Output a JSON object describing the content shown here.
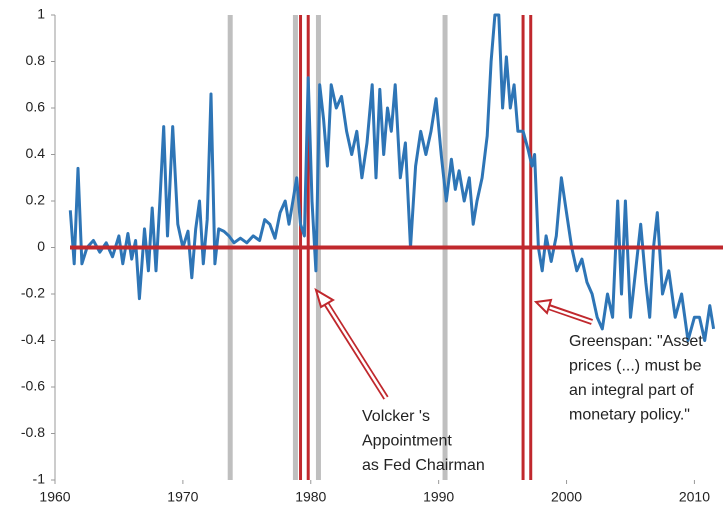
{
  "chart_data": {
    "type": "line",
    "xlim": [
      1960,
      2012
    ],
    "xticks": [
      1960,
      1970,
      1980,
      1990,
      2000,
      2010
    ],
    "ylim": [
      -1,
      1
    ],
    "yticks": [
      -1,
      -0.8,
      -0.6,
      -0.4,
      -0.2,
      0,
      0.2,
      0.4,
      0.6,
      0.8,
      1
    ],
    "color": "#2e75b6",
    "zero_line_color": "#c0282d",
    "gray_lines": [
      1973.7,
      1978.8,
      1980.6,
      1990.5
    ],
    "gray_color": "#bfbfbf",
    "red_lines": [
      1979.2,
      1979.8,
      1996.6,
      1997.2
    ],
    "red_color": "#c0282d",
    "x": [
      1961.2,
      1961.5,
      1961.8,
      1962.1,
      1962.5,
      1963,
      1963.5,
      1964,
      1964.5,
      1965,
      1965.3,
      1965.7,
      1966,
      1966.3,
      1966.6,
      1967,
      1967.3,
      1967.6,
      1967.9,
      1968.2,
      1968.5,
      1968.8,
      1969.2,
      1969.6,
      1970,
      1970.4,
      1970.7,
      1971,
      1971.3,
      1971.6,
      1971.9,
      1972.2,
      1972.5,
      1972.8,
      1973.2,
      1973.6,
      1974,
      1974.5,
      1975,
      1975.5,
      1976,
      1976.4,
      1976.8,
      1977.2,
      1977.6,
      1978,
      1978.3,
      1978.6,
      1978.9,
      1979.2,
      1979.5,
      1979.8,
      1980.1,
      1980.4,
      1980.7,
      1981,
      1981.3,
      1981.6,
      1982,
      1982.4,
      1982.8,
      1983.2,
      1983.6,
      1984,
      1984.4,
      1984.8,
      1985.1,
      1985.4,
      1985.7,
      1986,
      1986.3,
      1986.6,
      1987,
      1987.4,
      1987.8,
      1988.2,
      1988.6,
      1989,
      1989.4,
      1989.8,
      1990.2,
      1990.6,
      1991,
      1991.3,
      1991.6,
      1992,
      1992.4,
      1992.7,
      1993,
      1993.4,
      1993.8,
      1994.1,
      1994.4,
      1994.7,
      1995,
      1995.3,
      1995.6,
      1995.9,
      1996.2,
      1996.6,
      1997,
      1997.3,
      1997.5,
      1997.8,
      1998.1,
      1998.4,
      1998.8,
      1999.2,
      1999.6,
      2000,
      2000.4,
      2000.8,
      2001.2,
      2001.6,
      2002,
      2002.4,
      2002.8,
      2003.2,
      2003.6,
      2004,
      2004.3,
      2004.6,
      2005,
      2005.4,
      2005.8,
      2006.2,
      2006.5,
      2006.8,
      2007.1,
      2007.5,
      2008,
      2008.5,
      2009,
      2009.5,
      2010,
      2010.4,
      2010.8,
      2011.2,
      2011.5
    ],
    "values": [
      0.16,
      -0.07,
      0.34,
      -0.07,
      0,
      0.03,
      -0.02,
      0.02,
      -0.04,
      0.05,
      -0.07,
      0.06,
      -0.05,
      0.03,
      -0.22,
      0.08,
      -0.1,
      0.17,
      -0.1,
      0.2,
      0.52,
      0.05,
      0.52,
      0.1,
      0,
      0.07,
      -0.13,
      0.08,
      0.2,
      -0.07,
      0.12,
      0.66,
      -0.07,
      0.08,
      0.07,
      0.05,
      0.02,
      0.04,
      0.02,
      0.05,
      0.03,
      0.12,
      0.1,
      0.04,
      0.15,
      0.2,
      0.1,
      0.2,
      0.3,
      0.1,
      0.05,
      0.73,
      0.2,
      -0.1,
      0.7,
      0.55,
      0.35,
      0.7,
      0.6,
      0.65,
      0.5,
      0.4,
      0.5,
      0.3,
      0.45,
      0.7,
      0.3,
      0.68,
      0.4,
      0.6,
      0.5,
      0.7,
      0.3,
      0.45,
      0,
      0.35,
      0.5,
      0.4,
      0.5,
      0.64,
      0.4,
      0.2,
      0.38,
      0.25,
      0.33,
      0.2,
      0.3,
      0.1,
      0.2,
      0.3,
      0.48,
      0.8,
      1,
      1,
      0.6,
      0.82,
      0.6,
      0.7,
      0.5,
      0.5,
      0.42,
      0.35,
      0.4,
      0,
      -0.1,
      0.05,
      -0.06,
      0.05,
      0.3,
      0.15,
      0,
      -0.1,
      -0.05,
      -0.15,
      -0.2,
      -0.3,
      -0.35,
      -0.2,
      -0.3,
      0.2,
      -0.2,
      0.2,
      -0.3,
      -0.1,
      0.1,
      -0.15,
      -0.3,
      0,
      0.15,
      -0.2,
      -0.1,
      -0.3,
      -0.2,
      -0.4,
      -0.3,
      -0.3,
      -0.4,
      -0.25,
      -0.35
    ],
    "annotations": [
      {
        "lines": [
          "Volcker 's",
          "Appointment",
          "as Fed Chairman"
        ]
      },
      {
        "lines": [
          "Greenspan: \"Asset",
          "prices (...) must be",
          "an integral part of",
          "monetary policy.\""
        ]
      }
    ]
  }
}
